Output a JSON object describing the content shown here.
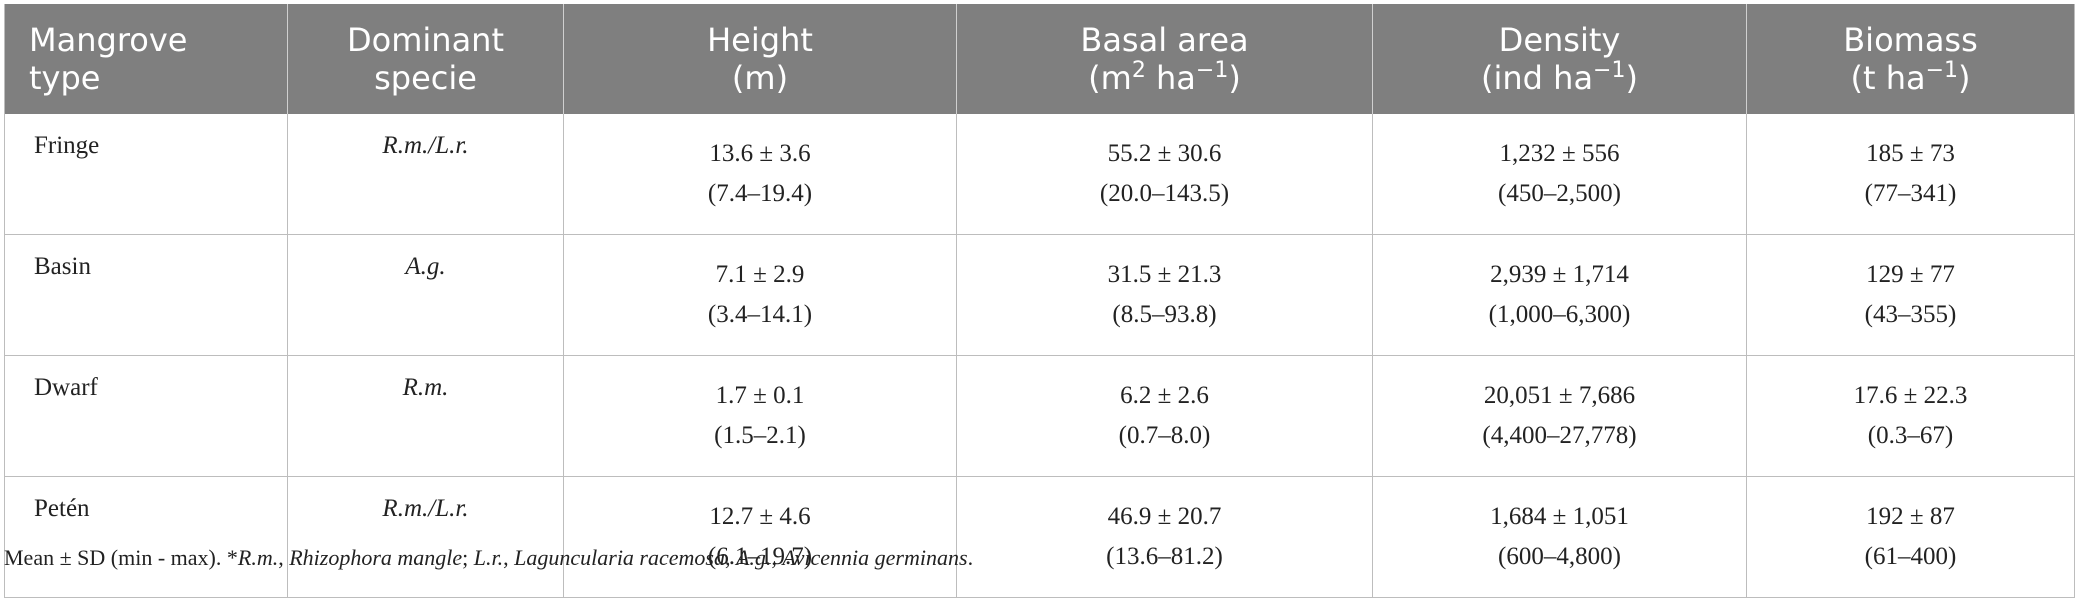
{
  "header": {
    "col1": [
      "Mangrove",
      "type"
    ],
    "col2": [
      "Dominant",
      "specie"
    ],
    "col3": [
      "Height",
      "(m)"
    ],
    "col4": [
      "Basal area",
      "(m",
      "2",
      " ha",
      "−1",
      ")"
    ],
    "col5": [
      "Density",
      "(ind ha",
      "−1",
      ")"
    ],
    "col6": [
      "Biomass",
      "(t ha",
      "−1",
      ")"
    ]
  },
  "rows": [
    {
      "type": "Fringe",
      "species": "R.m./L.r.",
      "height": [
        "13.6 ± 3.6",
        "(7.4–19.4)"
      ],
      "basal": [
        "55.2 ± 30.6",
        "(20.0–143.5)"
      ],
      "density": [
        "1,232 ± 556",
        "(450–2,500)"
      ],
      "biomass": [
        "185 ± 73",
        "(77–341)"
      ]
    },
    {
      "type": "Basin",
      "species": "A.g.",
      "height": [
        "7.1 ± 2.9",
        "(3.4–14.1)"
      ],
      "basal": [
        "31.5 ± 21.3",
        "(8.5–93.8)"
      ],
      "density": [
        "2,939 ± 1,714",
        "(1,000–6,300)"
      ],
      "biomass": [
        "129 ± 77",
        "(43–355)"
      ]
    },
    {
      "type": "Dwarf",
      "species": "R.m.",
      "height": [
        "1.7 ± 0.1",
        "(1.5–2.1)"
      ],
      "basal": [
        "6.2 ± 2.6",
        "(0.7–8.0)"
      ],
      "density": [
        "20,051 ± 7,686",
        "(4,400–27,778)"
      ],
      "biomass": [
        "17.6 ± 22.3",
        "(0.3–67)"
      ]
    },
    {
      "type": "Petén",
      "species": "R.m./L.r.",
      "height": [
        "12.7 ± 4.6",
        "(6.1–19.7)"
      ],
      "basal": [
        "46.9 ± 20.7",
        "(13.6–81.2)"
      ],
      "density": [
        "1,684 ± 1,051",
        "(600–4,800)"
      ],
      "biomass": [
        "192 ± 87",
        "(61–400)"
      ]
    }
  ],
  "footnote": {
    "prefix": "Mean ± SD (min - max). *",
    "rm": "R.m.",
    "rm_sep": ", ",
    "rm_name": "Rhizophora mangle",
    "sep1": "; ",
    "lr": "L.r.",
    "lr_sep": ", ",
    "lr_name": "Laguncularia racemosa",
    "sep2": ", ",
    "ag": "A.g.",
    "ag_sep": ", ",
    "ag_name": "Avicennia germinans",
    "end": "."
  }
}
